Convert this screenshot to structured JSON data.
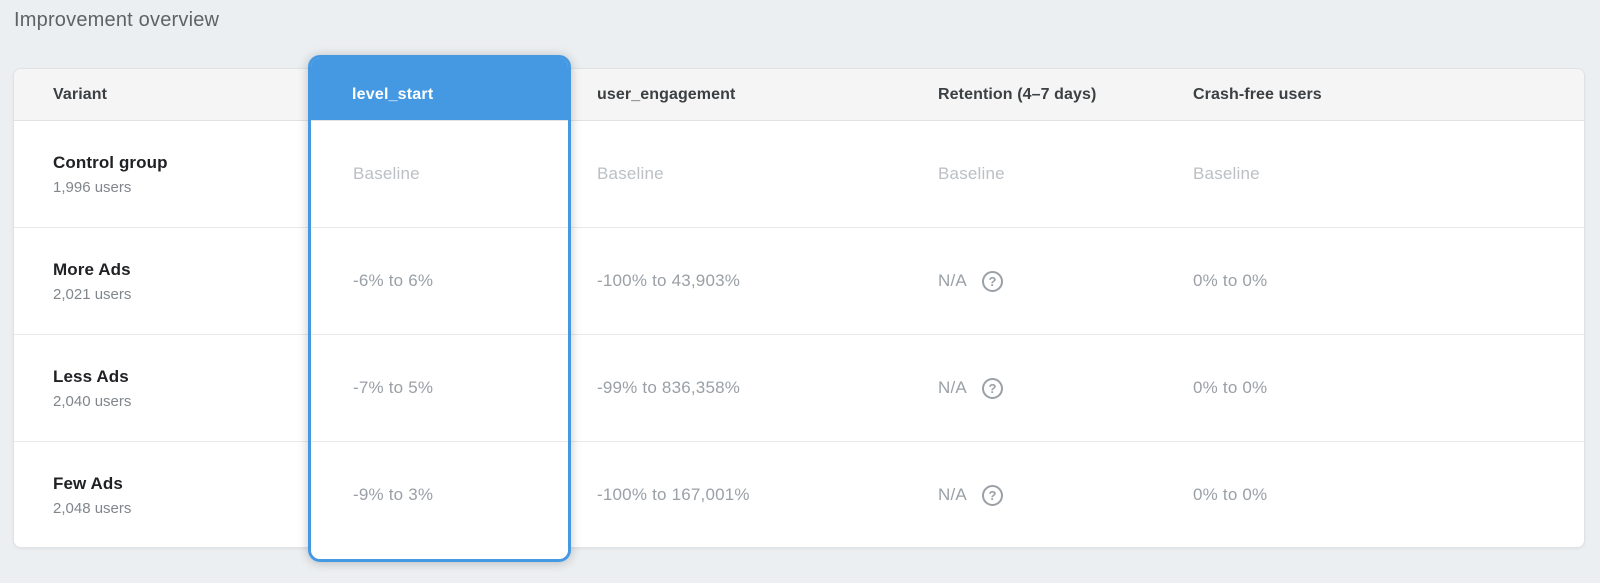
{
  "page": {
    "title": "Improvement overview"
  },
  "colors": {
    "accent_blue": "#4599e2",
    "page_background": "#eceff1",
    "header_row_background": "#f5f5f5",
    "baseline_text": "#bcc0c4",
    "value_text": "#9aa0a6"
  },
  "icons": {
    "help": "?"
  },
  "table": {
    "columns": [
      {
        "label": "Variant"
      },
      {
        "label": "level_start",
        "selected": true
      },
      {
        "label": "user_engagement"
      },
      {
        "label": "Retention (4–7 days)"
      },
      {
        "label": "Crash-free users"
      }
    ],
    "rows": [
      {
        "variant": "Control group",
        "users": "1,996 users",
        "level_start": "Baseline",
        "user_engagement": "Baseline",
        "retention": "Baseline",
        "crash_free": "Baseline"
      },
      {
        "variant": "More Ads",
        "users": "2,021 users",
        "level_start": "-6% to 6%",
        "user_engagement": "-100% to 43,903%",
        "retention": "N/A",
        "crash_free": "0% to 0%"
      },
      {
        "variant": "Less Ads",
        "users": "2,040 users",
        "level_start": "-7% to 5%",
        "user_engagement": "-99% to 836,358%",
        "retention": "N/A",
        "crash_free": "0% to 0%"
      },
      {
        "variant": "Few Ads",
        "users": "2,048 users",
        "level_start": "-9% to 3%",
        "user_engagement": "-100% to 167,001%",
        "retention": "N/A",
        "crash_free": "0% to 0%"
      }
    ]
  }
}
